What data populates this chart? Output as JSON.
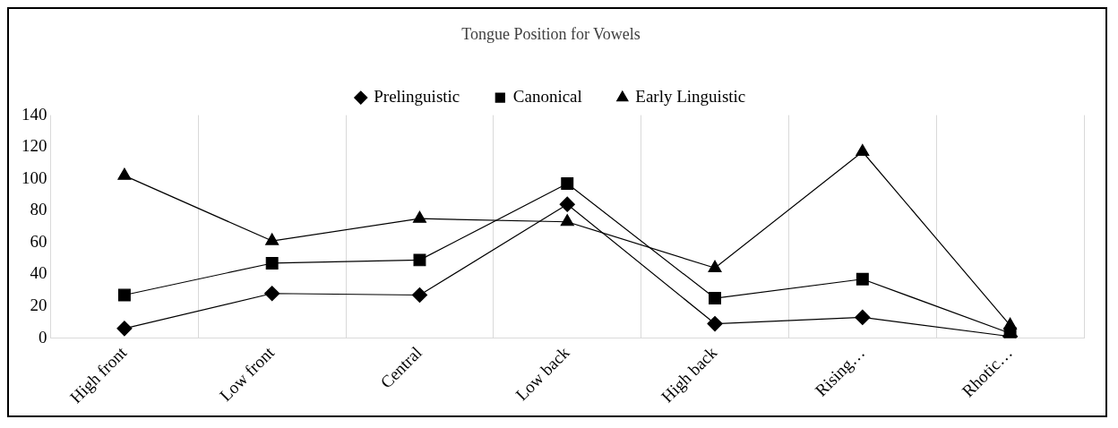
{
  "chart_data": {
    "type": "line",
    "title": "Tongue Position for Vowels",
    "categories": [
      "High front",
      "Low front",
      "Central",
      "Low back",
      "High back",
      "Rising…",
      "Rhotic…"
    ],
    "series": [
      {
        "name": "Prelinguistic",
        "color": "#000000",
        "marker": "diamond",
        "values": [
          6,
          28,
          27,
          84,
          9,
          13,
          1
        ]
      },
      {
        "name": "Canonical",
        "color": "#000000",
        "marker": "square",
        "values": [
          27,
          47,
          49,
          97,
          25,
          37,
          3
        ]
      },
      {
        "name": "Early Linguistic",
        "color": "#000000",
        "marker": "triangle",
        "values": [
          102,
          61,
          75,
          73,
          44,
          117,
          8
        ]
      }
    ],
    "ylim": [
      0,
      140
    ],
    "yticks": [
      0,
      20,
      40,
      60,
      80,
      100,
      120,
      140
    ],
    "grid": "x",
    "legend": "top",
    "line_style": "solid"
  }
}
